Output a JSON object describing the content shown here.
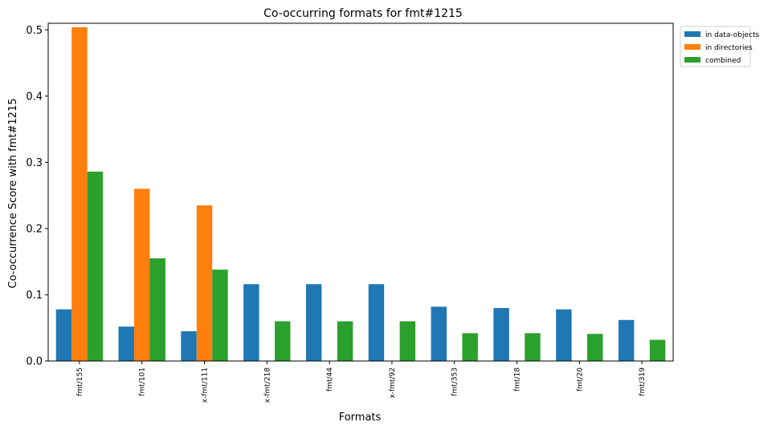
{
  "chart_data": {
    "type": "bar",
    "title": "Co-occurring formats for fmt#1215",
    "xlabel": "Formats",
    "ylabel": "Co-occurrence Score with fmt#1215",
    "ylim": [
      0,
      0.51
    ],
    "yticks": [
      "0.0",
      "0.1",
      "0.2",
      "0.3",
      "0.4",
      "0.5"
    ],
    "categories": [
      "fmt/155",
      "fmt/101",
      "x-fmt/111",
      "x-fmt/218",
      "fmt/44",
      "x-fmt/92",
      "fmt/353",
      "fmt/18",
      "fmt/20",
      "fmt/319"
    ],
    "series": [
      {
        "name": "in data-objects",
        "color": "#1f77b4",
        "values": [
          0.078,
          0.052,
          0.045,
          0.116,
          0.116,
          0.116,
          0.082,
          0.08,
          0.078,
          0.062
        ]
      },
      {
        "name": "in directories",
        "color": "#ff7f0e",
        "values": [
          0.504,
          0.26,
          0.235,
          0,
          0,
          0,
          0,
          0,
          0,
          0
        ]
      },
      {
        "name": "combined",
        "color": "#2ca02c",
        "values": [
          0.286,
          0.155,
          0.138,
          0.06,
          0.06,
          0.06,
          0.042,
          0.042,
          0.041,
          0.032
        ]
      }
    ],
    "grid": false,
    "legend_position": "outside top-right"
  }
}
